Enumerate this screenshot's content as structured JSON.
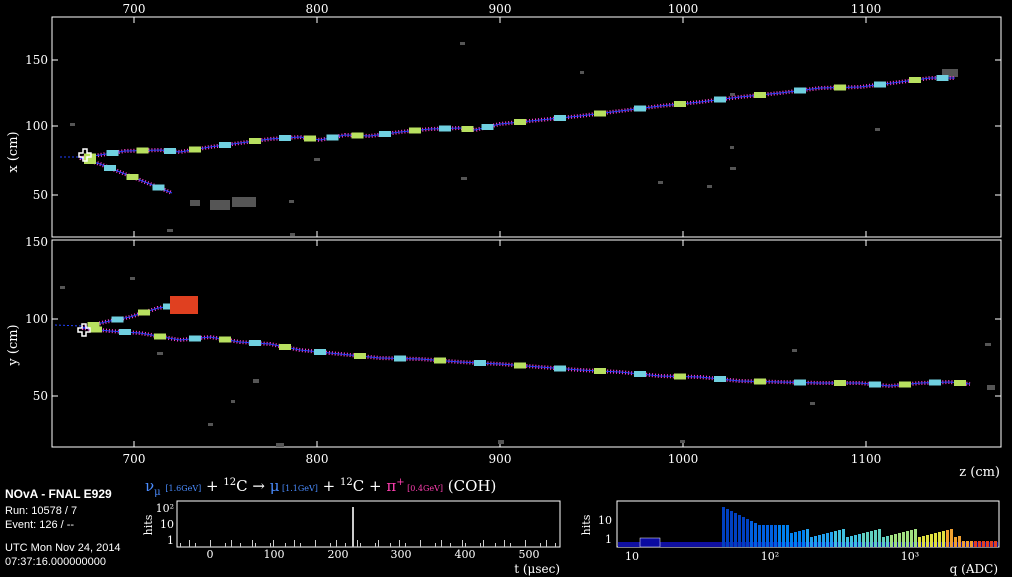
{
  "colors": {
    "background": "#000000",
    "frame": "#ffffff",
    "track": "#d040c0",
    "fit": "#4060ff"
  },
  "top_view": {
    "ylabel": "x (cm)",
    "top_axis_ticks": [
      "700",
      "800",
      "900",
      "1000",
      "1100"
    ],
    "y_ticks": [
      "50",
      "100",
      "150"
    ]
  },
  "side_view": {
    "ylabel": "y (cm)",
    "y_ticks": [
      "50",
      "100",
      "150"
    ],
    "x_ticks": [
      "700",
      "800",
      "900",
      "1000",
      "1100"
    ],
    "xlabel": "z (cm)"
  },
  "info": {
    "title": "NOvA - FNAL E929",
    "run": "Run:   10578 / 7",
    "event": "Event: 126 / --",
    "date": "UTC Mon Nov 24, 2014",
    "time": "07:37:16.000000000"
  },
  "equation": {
    "nu": "ν",
    "nu_sub": "μ",
    "nu_energy": "[1.6GeV]",
    "plus1": " + ",
    "c12_sup": "12",
    "c12": "C → ",
    "mu": "μ",
    "mu_energy": " [1.1GeV]",
    "plus2": " + ",
    "c12b_sup": "12",
    "c12b": "C + ",
    "pi": "π",
    "pi_sup": "+",
    "pi_energy": " [0.4GeV]",
    "coh": " (COH)"
  },
  "time_hist": {
    "ylabel": "hits",
    "y_ticks": [
      "10²",
      "10",
      "1"
    ],
    "x_ticks": [
      "0",
      "100",
      "200",
      "300",
      "400",
      "500"
    ],
    "xlabel": "t (μsec)"
  },
  "charge_hist": {
    "ylabel": "hits",
    "y_ticks": [
      "10",
      "1"
    ],
    "x_ticks": [
      "10",
      "10²",
      "10³"
    ],
    "xlabel": "q (ADC)"
  }
}
